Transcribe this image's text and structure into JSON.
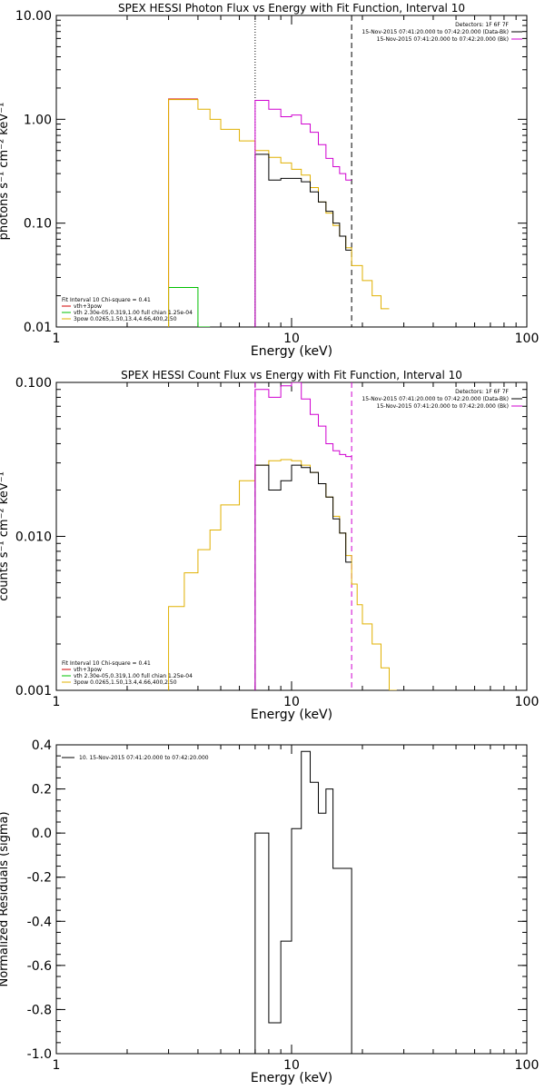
{
  "chart_data": [
    {
      "type": "line",
      "title": "SPEX HESSI Photon Flux vs Energy with Fit Function, Interval 10",
      "xlabel": "Energy (keV)",
      "ylabel": "photons s⁻¹ cm⁻² keV⁻¹",
      "xscale": "log",
      "yscale": "log",
      "xlim": [
        1,
        100
      ],
      "ylim": [
        0.01,
        10
      ],
      "xticks": [
        1,
        10,
        100
      ],
      "xtick_labels": [
        "1",
        "10",
        "100"
      ],
      "yticks": [
        0.01,
        0.1,
        1,
        10
      ],
      "ytick_labels": [
        "0.01",
        "0.10",
        "1.00",
        "10.00"
      ],
      "legend_top_right": [
        {
          "text": "Detectors: 1F 6F 7F",
          "color": "#000000"
        },
        {
          "text": "15-Nov-2015 07:41:20.000 to 07:42:20.000 (Data-Bk)",
          "color": "#000000"
        },
        {
          "text": "15-Nov-2015 07:41:20.000 to 07:42:20.000 (Bk)",
          "color": "#d000d0"
        }
      ],
      "legend_bottom_left": [
        {
          "text": "Fit Interval 10   Chi-square = 0.41",
          "color": "#000000"
        },
        {
          "text": "vth+3pow",
          "color": "#d00000"
        },
        {
          "text": "vth 2.30e-05,0.319,1.00  full chian 1.25e-04",
          "color": "#00c000"
        },
        {
          "text": "3pow 0.0265,1.50,13.4,4.66,400,2.50",
          "color": "#e0b000"
        }
      ],
      "vlines": [
        {
          "x": 7,
          "style": "dotted",
          "color": "#000000"
        },
        {
          "x": 18,
          "style": "dashed",
          "color": "#000000"
        }
      ],
      "series": [
        {
          "name": "vth+3pow",
          "color": "#d00000",
          "edges": [
            3,
            3.5,
            4
          ],
          "values": [
            1.57,
            1.57
          ]
        },
        {
          "name": "vth",
          "color": "#00c000",
          "edges": [
            3,
            3.5,
            4,
            4.5
          ],
          "values": [
            0.024,
            0.024,
            0.003
          ]
        },
        {
          "name": "3pow",
          "color": "#e0b000",
          "edges": [
            3,
            3.5,
            4,
            4.5,
            5,
            6,
            7,
            8,
            9,
            10,
            11,
            12,
            13,
            14,
            15,
            16,
            17,
            18,
            20,
            22,
            24,
            26
          ],
          "values": [
            1.55,
            1.55,
            1.25,
            1.0,
            0.8,
            0.62,
            0.5,
            0.43,
            0.38,
            0.33,
            0.29,
            0.22,
            0.16,
            0.125,
            0.095,
            0.075,
            0.058,
            0.039,
            0.028,
            0.02,
            0.015
          ]
        },
        {
          "name": "Data-Bk",
          "color": "#000000",
          "edges": [
            7,
            8,
            9,
            10,
            11,
            12,
            13,
            14,
            15,
            16,
            17,
            18
          ],
          "values": [
            0.46,
            0.26,
            0.27,
            0.27,
            0.25,
            0.2,
            0.16,
            0.13,
            0.1,
            0.075,
            0.055
          ]
        },
        {
          "name": "Bk",
          "color": "#d000d0",
          "edges": [
            7,
            8,
            9,
            10,
            11,
            12,
            13,
            14,
            15,
            16,
            17,
            18
          ],
          "values": [
            1.52,
            1.25,
            1.06,
            1.1,
            0.9,
            0.75,
            0.57,
            0.42,
            0.35,
            0.3,
            0.26
          ]
        }
      ]
    },
    {
      "type": "line",
      "title": "SPEX HESSI Count Flux vs Energy with Fit Function, Interval 10",
      "xlabel": "Energy (keV)",
      "ylabel": "counts s⁻¹ cm⁻² keV⁻¹",
      "xscale": "log",
      "yscale": "log",
      "xlim": [
        1,
        100
      ],
      "ylim": [
        0.001,
        0.1
      ],
      "xticks": [
        1,
        10,
        100
      ],
      "xtick_labels": [
        "1",
        "10",
        "100"
      ],
      "yticks": [
        0.001,
        0.01,
        0.1
      ],
      "ytick_labels": [
        "0.001",
        "0.010",
        "0.100"
      ],
      "legend_top_right": [
        {
          "text": "Detectors: 1F 6F 7F",
          "color": "#000000"
        },
        {
          "text": "15-Nov-2015 07:41:20.000 to 07:42:20.000 (Data-Bk)",
          "color": "#000000"
        },
        {
          "text": "15-Nov-2015 07:41:20.000 to 07:42:20.000 (Bk)",
          "color": "#d000d0"
        }
      ],
      "legend_bottom_left": [
        {
          "text": "Fit Interval 10   Chi-square = 0.41",
          "color": "#000000"
        },
        {
          "text": "vth+3pow",
          "color": "#d00000"
        },
        {
          "text": "vth 2.30e-05,0.319,1.00  full chian 1.25e-04",
          "color": "#00c000"
        },
        {
          "text": "3pow 0.0265,1.50,13.4,4.66,400,2.50",
          "color": "#e0b000"
        }
      ],
      "vlines": [
        {
          "x": 7,
          "style": "dashed",
          "color": "#d000d0"
        },
        {
          "x": 18,
          "style": "dashed",
          "color": "#d000d0"
        }
      ],
      "series": [
        {
          "name": "3pow",
          "color": "#e0b000",
          "edges": [
            3,
            3.5,
            4,
            4.5,
            5,
            6,
            7,
            8,
            9,
            10,
            11,
            12,
            13,
            14,
            15,
            16,
            17,
            18,
            19,
            20,
            22,
            24,
            26,
            28
          ],
          "values": [
            0.0035,
            0.0058,
            0.0082,
            0.011,
            0.016,
            0.023,
            0.029,
            0.031,
            0.0315,
            0.031,
            0.029,
            0.026,
            0.022,
            0.018,
            0.0135,
            0.0105,
            0.0075,
            0.0049,
            0.0036,
            0.0027,
            0.002,
            0.0014,
            0.001
          ]
        },
        {
          "name": "Data-Bk",
          "color": "#000000",
          "edges": [
            7,
            8,
            9,
            10,
            11,
            12,
            13,
            14,
            15,
            16,
            17,
            18
          ],
          "values": [
            0.029,
            0.02,
            0.023,
            0.029,
            0.028,
            0.026,
            0.022,
            0.018,
            0.013,
            0.0105,
            0.0068
          ]
        },
        {
          "name": "Bk",
          "color": "#d000d0",
          "edges": [
            7,
            8,
            9,
            10,
            11,
            12,
            13,
            14,
            15,
            16,
            17,
            18
          ],
          "values": [
            0.09,
            0.08,
            0.095,
            0.1,
            0.078,
            0.062,
            0.052,
            0.04,
            0.036,
            0.034,
            0.033
          ]
        }
      ]
    },
    {
      "type": "line",
      "title": "",
      "xlabel": "Energy (keV)",
      "ylabel": "Normalized Residuals (sigma)",
      "xscale": "log",
      "yscale": "linear",
      "xlim": [
        1,
        100
      ],
      "ylim": [
        -1.0,
        0.4
      ],
      "xticks": [
        1,
        10,
        100
      ],
      "xtick_labels": [
        "1",
        "10",
        "100"
      ],
      "yticks": [
        -1.0,
        -0.8,
        -0.6,
        -0.4,
        -0.2,
        0.0,
        0.2,
        0.4
      ],
      "ytick_labels": [
        "-1.0",
        "-0.8",
        "-0.6",
        "-0.4",
        "-0.2",
        "0.0",
        "0.2",
        "0.4"
      ],
      "legend_top_left": [
        {
          "text": "10. 15-Nov-2015 07:41:20.000 to 07:42:20.000",
          "color": "#000000"
        }
      ],
      "series": [
        {
          "name": "10. 15-Nov-2015 07:41:20.000 to 07:42:20.000",
          "color": "#000000",
          "edges": [
            7,
            8,
            9,
            10,
            11,
            12,
            13,
            14,
            15,
            16,
            17,
            18
          ],
          "values": [
            0.0,
            -0.86,
            -0.49,
            0.02,
            0.37,
            0.23,
            0.09,
            0.2,
            -0.16,
            -0.16,
            -0.16
          ]
        }
      ]
    }
  ]
}
